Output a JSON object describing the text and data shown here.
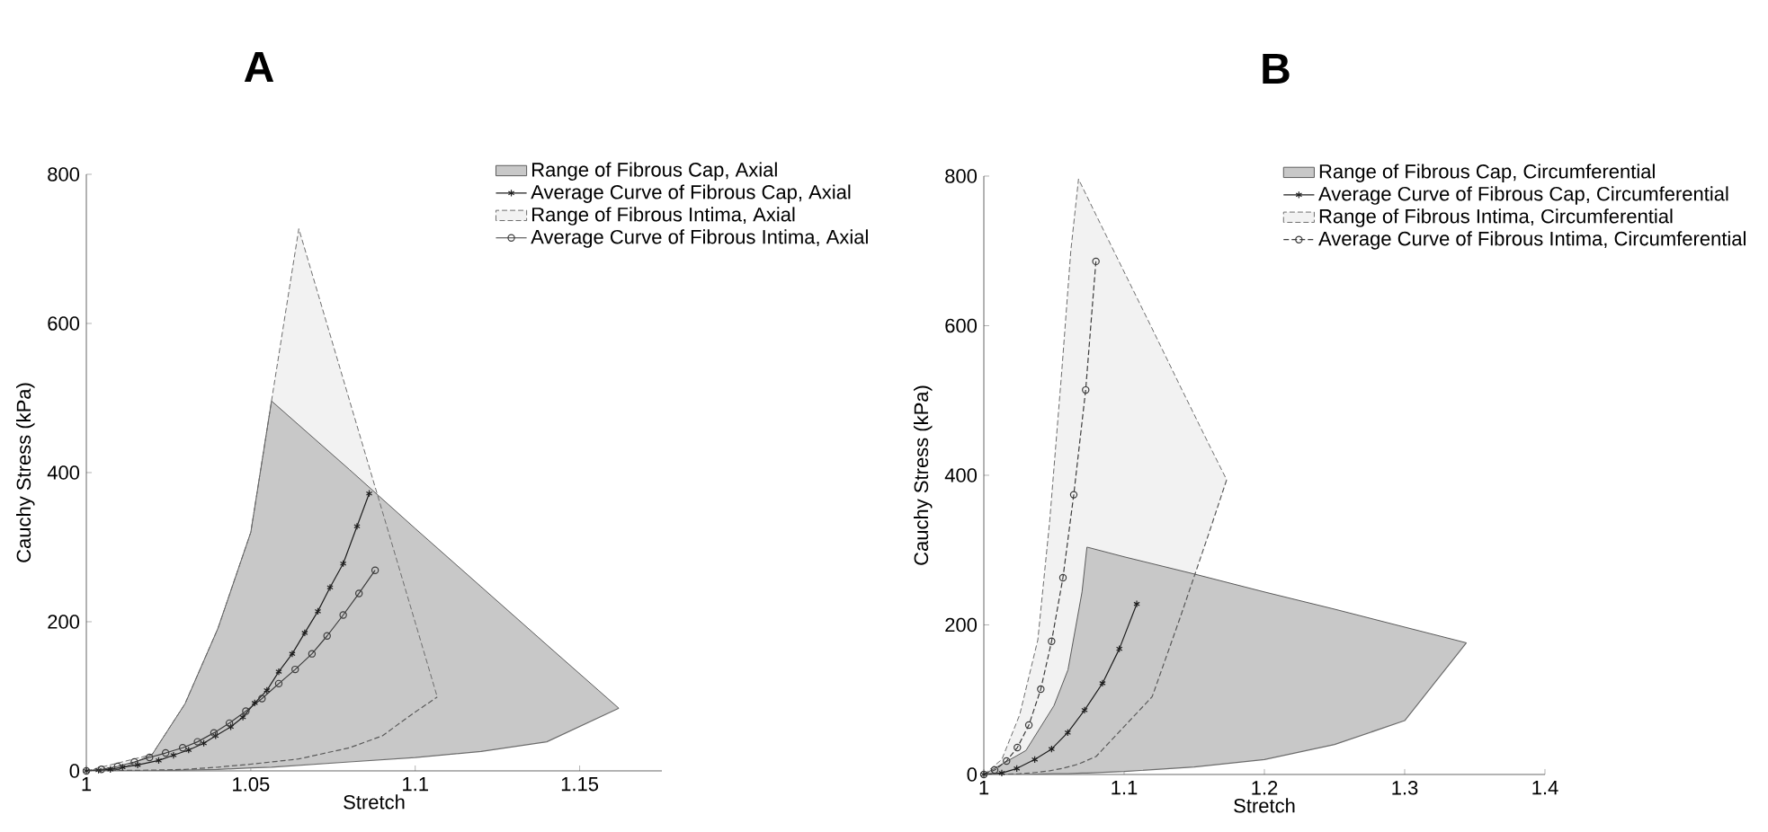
{
  "chart_data": [
    {
      "type": "line",
      "title": "A",
      "xlabel": "Stretch",
      "ylabel": "Cauchy Stress (kPa)",
      "xlim": [
        1,
        1.175
      ],
      "ylim": [
        0,
        800
      ],
      "xticks": [
        1,
        1.05,
        1.1,
        1.15
      ],
      "yticks": [
        0,
        200,
        400,
        600,
        800
      ],
      "legend": "top right",
      "series": [
        {
          "name": "Range of Fibrous Cap, Axial",
          "type": "area",
          "color": "#c8c8c8",
          "line_style": "solid",
          "x": [
            1.0,
            1.01,
            1.02,
            1.03,
            1.04,
            1.05,
            1.0563,
            1.08,
            1.1,
            1.12,
            1.14,
            1.1619
          ],
          "values": [
            0,
            2,
            22,
            90,
            191,
            320,
            496,
            404,
            325,
            247,
            169,
            84
          ]
        },
        {
          "type": "line",
          "color": "#6c6c6c",
          "marker": "none",
          "line_style": "solid",
          "x": [
            1.0,
            1.01,
            1.02,
            1.03,
            1.04,
            1.05,
            1.0563,
            1.08,
            1.1,
            1.12,
            1.14,
            1.1619
          ],
          "values": [
            0,
            0,
            0,
            1,
            2,
            4,
            5,
            12,
            18,
            26,
            39,
            84
          ]
        },
        {
          "name": "Average Curve of Fibrous Cap, Axial",
          "type": "line",
          "color": "#1e1e1e",
          "marker": "cross",
          "line_style": "solid",
          "x": [
            1.0,
            1.0037,
            1.0073,
            1.011,
            1.0156,
            1.022,
            1.0265,
            1.0311,
            1.0357,
            1.0393,
            1.0439,
            1.0476,
            1.0512,
            1.0549,
            1.0585,
            1.0626,
            1.0664,
            1.0704,
            1.0741,
            1.0781,
            1.0823,
            1.086
          ],
          "values": [
            0,
            1,
            2,
            5,
            8,
            14,
            21,
            28,
            37,
            47,
            59,
            72,
            91,
            108,
            133,
            157,
            185,
            214,
            246,
            278,
            328,
            372
          ]
        },
        {
          "name": "Range of Fibrous Intima, Axial",
          "type": "area",
          "color": "#f2f2f2",
          "line_style": "dashed",
          "x": [
            1.0,
            1.02,
            1.03,
            1.04,
            1.05,
            1.0563,
            1.0646,
            1.08,
            1.09,
            1.1,
            1.1067
          ],
          "values": [
            0,
            22,
            90,
            191,
            320,
            496,
            727,
            497,
            348,
            199,
            99
          ]
        },
        {
          "type": "line",
          "color": "#5a5a5a",
          "marker": "none",
          "line_style": "dashed",
          "x": [
            1.0,
            1.02,
            1.03,
            1.04,
            1.05,
            1.0563,
            1.0646,
            1.08,
            1.09,
            1.1,
            1.1067
          ],
          "values": [
            0,
            1,
            2,
            5,
            9,
            12,
            16,
            31,
            47,
            79,
            99
          ]
        },
        {
          "name": "Average Curve of Fibrous Intima, Axial",
          "type": "line",
          "color": "#3c3c3c",
          "marker": "circle",
          "line_style": "solid",
          "x": [
            1.0,
            1.0046,
            1.0095,
            1.0146,
            1.0192,
            1.0241,
            1.0293,
            1.0338,
            1.0388,
            1.0435,
            1.0485,
            1.0534,
            1.0585,
            1.0635,
            1.0686,
            1.0732,
            1.0781,
            1.0829,
            1.0878
          ],
          "values": [
            0,
            2,
            6,
            12,
            18,
            24,
            31,
            39,
            51,
            64,
            80,
            97,
            117,
            136,
            157,
            181,
            209,
            238,
            269
          ]
        }
      ]
    },
    {
      "type": "line",
      "title": "B",
      "xlabel": "Stretch",
      "ylabel": "Cauchy Stress (kPa)",
      "xlim": [
        1,
        1.4
      ],
      "ylim": [
        0,
        800
      ],
      "xticks": [
        1,
        1.1,
        1.2,
        1.3,
        1.4
      ],
      "yticks": [
        0,
        200,
        400,
        600,
        800
      ],
      "legend": "top right",
      "series": [
        {
          "name": "Range of Fibrous Cap, Circumferential",
          "type": "area",
          "color": "#c8c8c8",
          "line_style": "solid",
          "x": [
            1.0,
            1.03,
            1.05,
            1.06,
            1.07,
            1.0735,
            1.1,
            1.15,
            1.2,
            1.25,
            1.3,
            1.344
          ],
          "values": [
            0,
            32,
            92,
            140,
            244,
            304,
            291,
            268,
            244,
            221,
            197,
            176
          ]
        },
        {
          "type": "line",
          "color": "#6c6c6c",
          "marker": "none",
          "line_style": "solid",
          "x": [
            1.0,
            1.03,
            1.05,
            1.06,
            1.07,
            1.0735,
            1.1,
            1.15,
            1.2,
            1.25,
            1.3,
            1.344
          ],
          "values": [
            0,
            0,
            1,
            1,
            2,
            2,
            4,
            10,
            20,
            40,
            72,
            176
          ]
        },
        {
          "name": "Average Curve of Fibrous Cap, Circumferential",
          "type": "line",
          "color": "#1e1e1e",
          "marker": "cross",
          "line_style": "solid",
          "x": [
            1.0,
            1.0128,
            1.0235,
            1.0363,
            1.0483,
            1.0598,
            1.0718,
            1.0846,
            1.0966,
            1.109
          ],
          "values": [
            0,
            2,
            8,
            20,
            34,
            56,
            86,
            122,
            168,
            228
          ]
        },
        {
          "name": "Range of Fibrous Intima, Circumferential",
          "type": "area",
          "color": "#f2f2f2",
          "line_style": "dashed",
          "x": [
            1.0,
            1.0128,
            1.0256,
            1.0385,
            1.047,
            1.0556,
            1.062,
            1.0675,
            1.08,
            1.12,
            1.14,
            1.16,
            1.1731
          ],
          "values": [
            0,
            20,
            80,
            180,
            340,
            540,
            700,
            796,
            748,
            596,
            519,
            443,
            394
          ]
        },
        {
          "type": "line",
          "color": "#5a5a5a",
          "marker": "none",
          "line_style": "dashed",
          "x": [
            1.0,
            1.0128,
            1.0256,
            1.0385,
            1.047,
            1.0556,
            1.062,
            1.0675,
            1.08,
            1.12,
            1.14,
            1.16,
            1.1731
          ],
          "values": [
            0,
            0,
            1,
            3,
            5,
            8,
            11,
            14,
            24,
            104,
            210,
            320,
            394
          ]
        },
        {
          "name": "Average Curve of Fibrous Intima, Circumferential",
          "type": "line",
          "color": "#3c3c3c",
          "marker": "circle",
          "line_style": "dashed",
          "x": [
            1.0,
            1.0077,
            1.0162,
            1.0239,
            1.0321,
            1.0406,
            1.0483,
            1.0564,
            1.0641,
            1.0726,
            1.0799
          ],
          "values": [
            0,
            6,
            18,
            36,
            66,
            114,
            178,
            263,
            374,
            514,
            686
          ]
        }
      ]
    }
  ]
}
